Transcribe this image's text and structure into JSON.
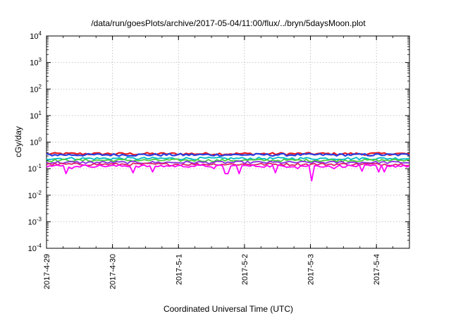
{
  "chart_data": {
    "type": "line",
    "title": "/data/run/goesPlots/archive/2017-05-04/11:00/flux/../bryn/5daysMoon.plot",
    "xlabel": "Coordinated Universal Time (UTC)",
    "ylabel": "cGy/day",
    "yscale": "log",
    "ylim": [
      0.0001,
      10000
    ],
    "xlim": [
      "2017-4-29",
      "2017-5-4 12:00"
    ],
    "grid": true,
    "y_ticks": [
      {
        "base": "10",
        "exp": "-4"
      },
      {
        "base": "10",
        "exp": "-3"
      },
      {
        "base": "10",
        "exp": "-2"
      },
      {
        "base": "10",
        "exp": "-1"
      },
      {
        "base": "10",
        "exp": "0"
      },
      {
        "base": "10",
        "exp": "1"
      },
      {
        "base": "10",
        "exp": "2"
      },
      {
        "base": "10",
        "exp": "3"
      },
      {
        "base": "10",
        "exp": "4"
      }
    ],
    "x_ticks": [
      "2017-4-29",
      "2017-4-30",
      "2017-5-1",
      "2017-5-2",
      "2017-5-3",
      "2017-5-4"
    ],
    "series": [
      {
        "color": "#e8191f",
        "level": 0.36
      },
      {
        "color": "#2a3fe0",
        "level": 0.33
      },
      {
        "color": "#00b8c8",
        "level": 0.24
      },
      {
        "color": "#4dcc3a",
        "level": 0.205
      },
      {
        "color": "#8a2be2",
        "level": 0.17
      },
      {
        "color": "#e0206a",
        "level": 0.145
      },
      {
        "color": "#ff00ff",
        "level": 0.125
      }
    ],
    "dips": [
      {
        "x": "2017-4-29 07:00",
        "y": 0.065
      },
      {
        "x": "2017-4-29 09:30",
        "y": 0.1
      },
      {
        "x": "2017-4-30 07:00",
        "y": 0.07
      },
      {
        "x": "2017-4-30 15:00",
        "y": 0.075
      },
      {
        "x": "2017-5-1 13:00",
        "y": 0.1
      },
      {
        "x": "2017-5-1 16:30",
        "y": 0.065
      },
      {
        "x": "2017-5-1 18:30",
        "y": 0.065
      },
      {
        "x": "2017-5-1 22:00",
        "y": 0.065
      },
      {
        "x": "2017-5-2 11:00",
        "y": 0.07
      },
      {
        "x": "2017-5-2 19:00",
        "y": 0.1
      },
      {
        "x": "2017-5-3 00:00",
        "y": 0.035
      },
      {
        "x": "2017-5-3 09:00",
        "y": 0.1
      },
      {
        "x": "2017-5-3 19:00",
        "y": 0.08
      },
      {
        "x": "2017-5-4 01:00",
        "y": 0.075
      },
      {
        "x": "2017-5-4 03:00",
        "y": 0.075
      }
    ]
  }
}
